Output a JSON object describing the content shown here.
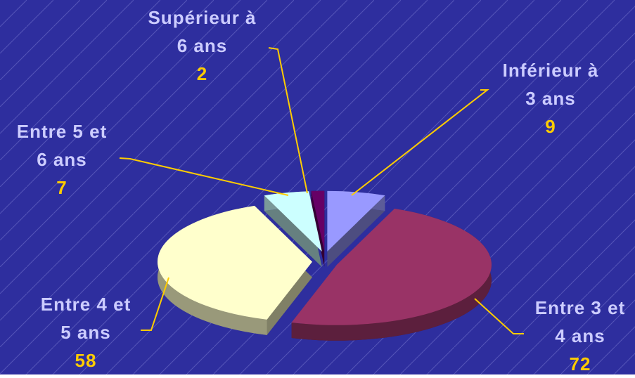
{
  "chart_data": {
    "type": "pie3d",
    "categories": [
      "Inférieur à 3 ans",
      "Entre 3 et 4 ans",
      "Entre 4 et 5 ans",
      "Entre 5 et 6 ans",
      "Supérieur à 6 ans"
    ],
    "values": [
      9,
      72,
      58,
      7,
      2
    ],
    "colors": [
      "#9999ff",
      "#993366",
      "#ffffcc",
      "#ccffff",
      "#660066"
    ]
  }
}
